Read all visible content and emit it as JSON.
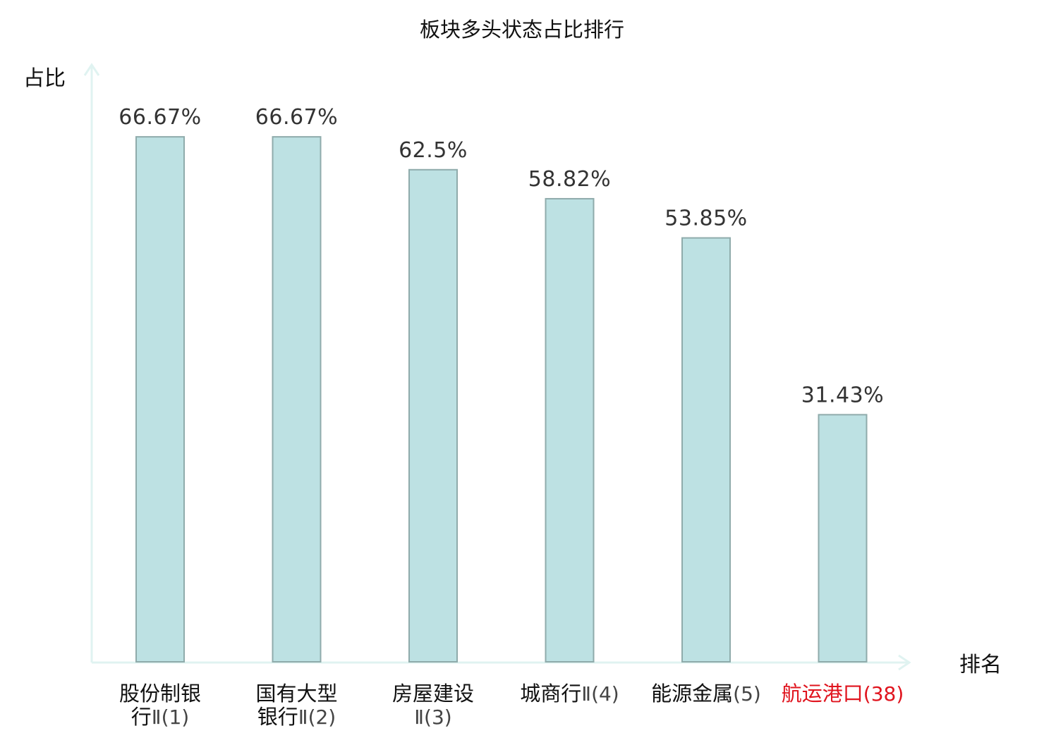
{
  "chart_data": {
    "type": "bar",
    "title": "板块多头状态占比排行",
    "ylabel": "占比",
    "xlabel": "排名",
    "ylim": [
      0,
      80
    ],
    "grid": false,
    "categories": [
      {
        "lines": [
          {
            "name": "股份制银",
            "rank": ""
          },
          {
            "name": "行",
            "rank": "Ⅱ(1)"
          }
        ],
        "highlight": false
      },
      {
        "lines": [
          {
            "name": "国有大型",
            "rank": ""
          },
          {
            "name": "银行",
            "rank": "Ⅱ(2)"
          }
        ],
        "highlight": false
      },
      {
        "lines": [
          {
            "name": "房屋建设",
            "rank": ""
          },
          {
            "name": "",
            "rank": "Ⅱ(3)"
          }
        ],
        "highlight": false
      },
      {
        "lines": [
          {
            "name": "城商行",
            "rank": "Ⅱ(4)"
          }
        ],
        "highlight": false
      },
      {
        "lines": [
          {
            "name": "能源金属",
            "rank": "(5)"
          }
        ],
        "highlight": false
      },
      {
        "lines": [
          {
            "name": "航运港口",
            "rank": "(38)"
          }
        ],
        "highlight": true
      }
    ],
    "values": [
      66.67,
      66.67,
      62.5,
      58.82,
      53.85,
      31.43
    ],
    "value_labels": [
      "66.67%",
      "66.67%",
      "62.5%",
      "58.82%",
      "53.85%",
      "31.43%"
    ],
    "colors": {
      "bar_fill": "#bde1e3",
      "bar_stroke": "#8fabab",
      "axis": "#e0f3f1",
      "label_text": "#111111",
      "rank_text": "#444444",
      "highlight": "#e0141e"
    }
  }
}
